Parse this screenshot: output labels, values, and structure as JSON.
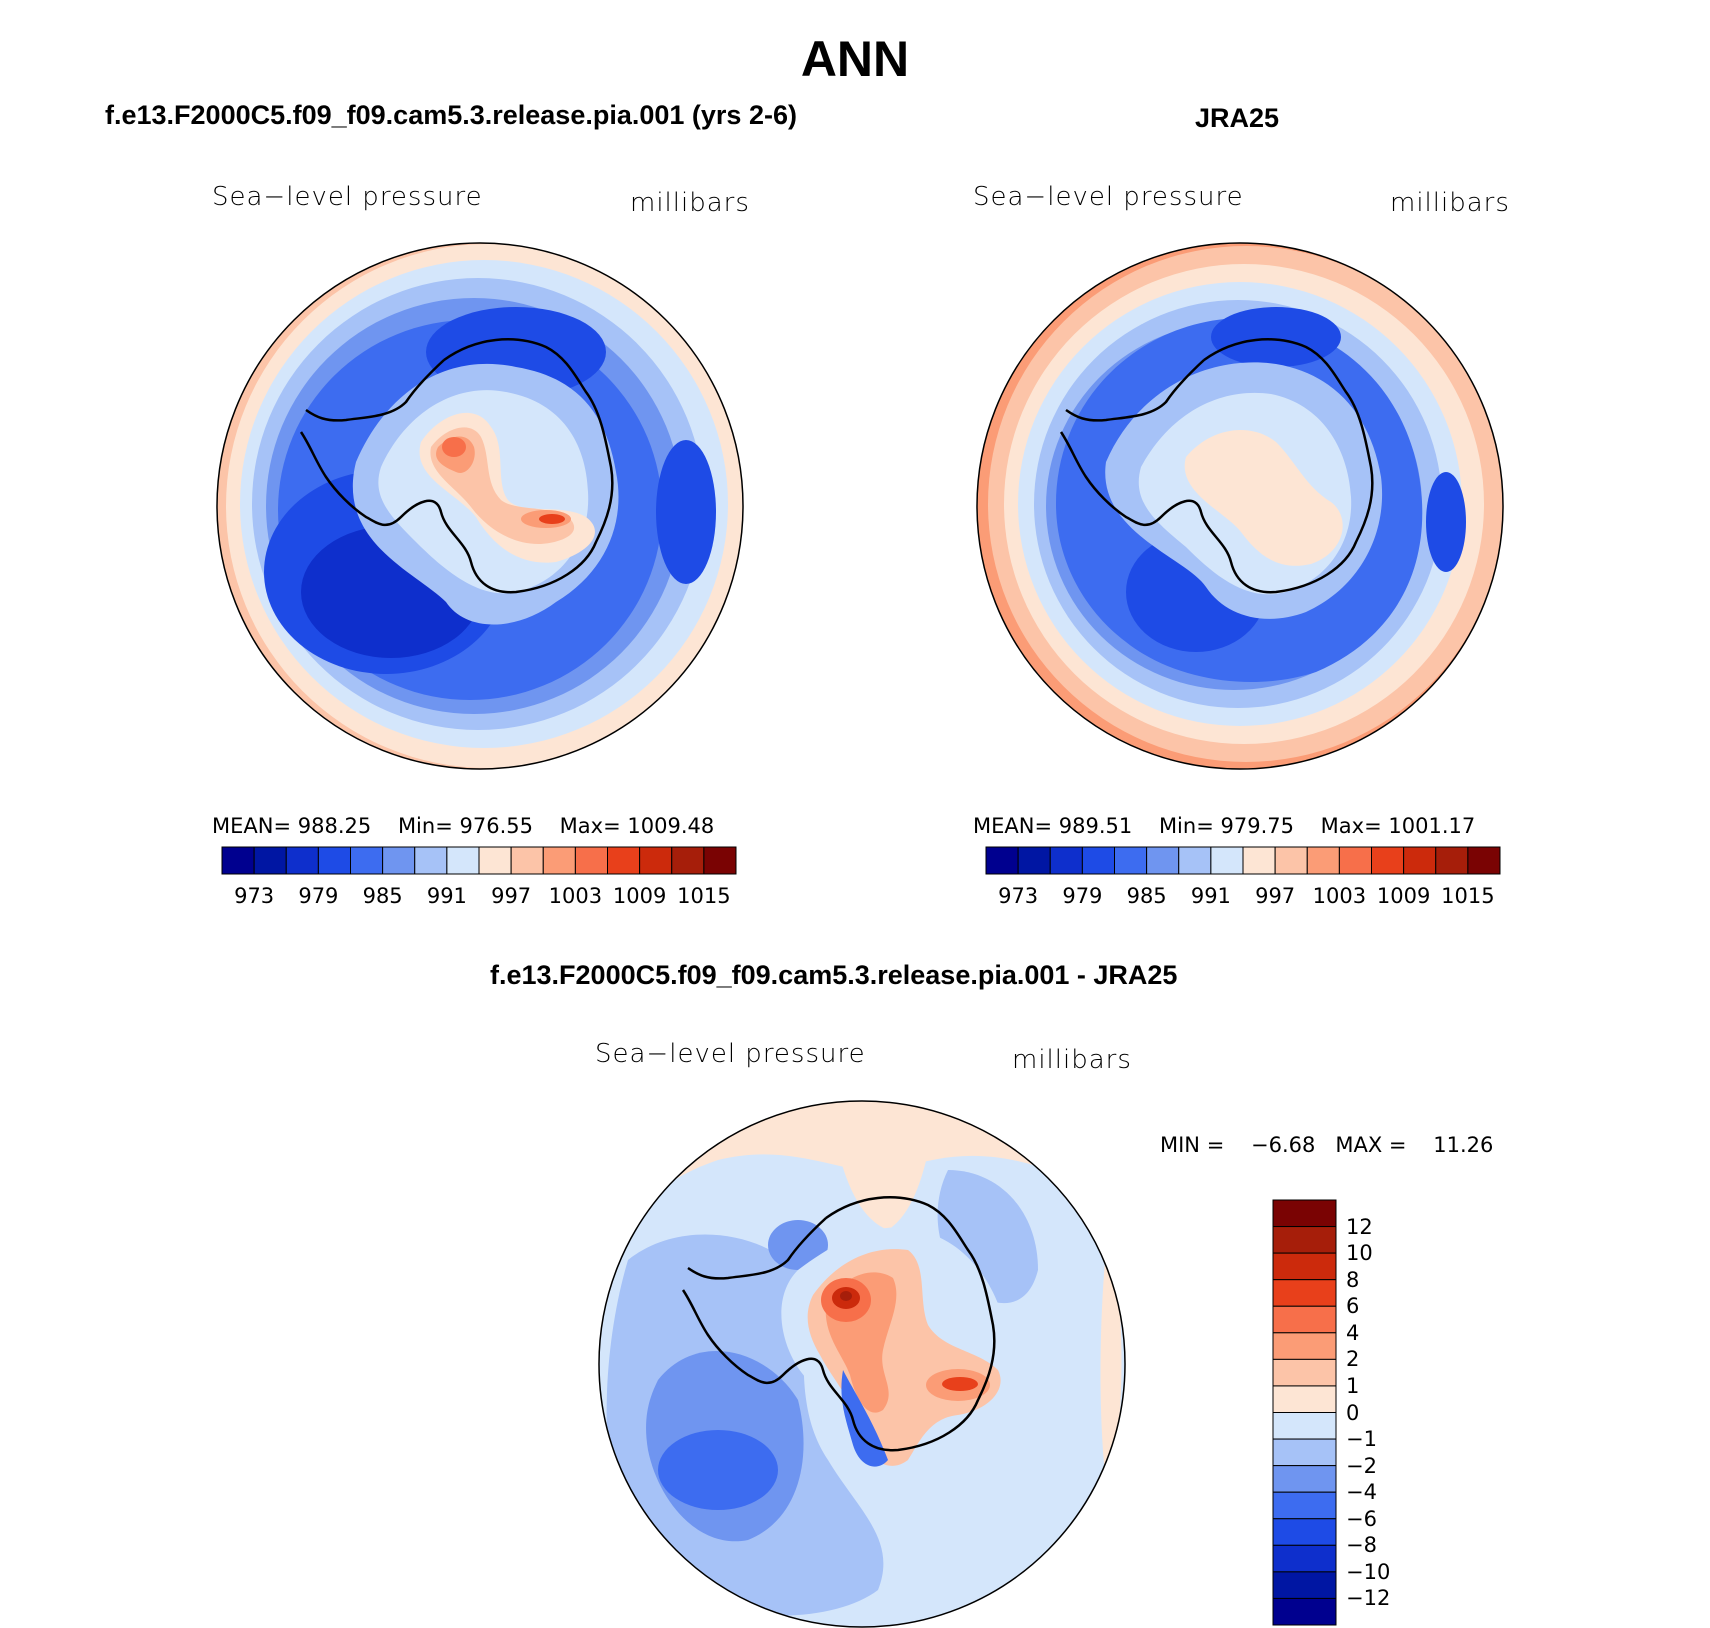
{
  "figure": {
    "title": "ANN"
  },
  "panels": [
    {
      "subtitle": "f.e13.F2000C5.f09_f09.cam5.3.release.pia.001 (yrs 2-6)",
      "variable": "Sea−level pressure",
      "units": "millibars",
      "stats": {
        "mean_label": "MEAN=",
        "mean": "988.25",
        "min_label": "Min=",
        "min": "976.55",
        "max_label": "Max=",
        "max": "1009.48"
      }
    },
    {
      "subtitle": "JRA25",
      "variable": "Sea−level pressure",
      "units": "millibars",
      "stats": {
        "mean_label": "MEAN=",
        "mean": "989.51",
        "min_label": "Min=",
        "min": "979.75",
        "max_label": "Max=",
        "max": "1001.17"
      }
    },
    {
      "subtitle": "f.e13.F2000C5.f09_f09.cam5.3.release.pia.001 - JRA25",
      "variable": "Sea−level pressure",
      "units": "millibars",
      "stats": {
        "min_label": "MIN =",
        "min": "−6.68",
        "max_label": "MAX =",
        "max": "11.26"
      }
    }
  ],
  "colorbars": {
    "abs": {
      "colors": [
        "#00008f",
        "#0016a3",
        "#0e2fcc",
        "#1e4be6",
        "#3d6cf0",
        "#6f95f0",
        "#a6c2f7",
        "#d4e6fb",
        "#fde5d4",
        "#fcc4a8",
        "#fb9c76",
        "#f76f4a",
        "#e8401b",
        "#cc2a0c",
        "#a61e0a",
        "#7a0303"
      ],
      "labels": [
        "973",
        "979",
        "985",
        "991",
        "997",
        "1003",
        "1009",
        "1015"
      ]
    },
    "diff": {
      "colors": [
        "#00008f",
        "#0016a3",
        "#0e2fcc",
        "#1e4be6",
        "#3d6cf0",
        "#6f95f0",
        "#a6c2f7",
        "#d4e6fb",
        "#fde5d4",
        "#fcc4a8",
        "#fb9c76",
        "#f76f4a",
        "#e8401b",
        "#cc2a0c",
        "#a61e0a",
        "#7a0303"
      ],
      "labels": [
        "12",
        "10",
        "8",
        "6",
        "4",
        "2",
        "1",
        "0",
        "−1",
        "−2",
        "−4",
        "−6",
        "−8",
        "−10",
        "−12"
      ]
    }
  },
  "chart_data": [
    {
      "type": "heatmap",
      "title": "f.e13.F2000C5.f09_f09.cam5.3.release.pia.001 (yrs 2-6)",
      "field": "Sea-level pressure",
      "units": "millibars",
      "projection": "south polar stereographic",
      "contour_levels": [
        973,
        976,
        979,
        982,
        985,
        988,
        991,
        994,
        997,
        1000,
        1003,
        1006,
        1009,
        1012,
        1015
      ],
      "mean": 988.25,
      "min": 976.55,
      "max": 1009.48
    },
    {
      "type": "heatmap",
      "title": "JRA25",
      "field": "Sea-level pressure",
      "units": "millibars",
      "projection": "south polar stereographic",
      "contour_levels": [
        973,
        976,
        979,
        982,
        985,
        988,
        991,
        994,
        997,
        1000,
        1003,
        1006,
        1009,
        1012,
        1015
      ],
      "mean": 989.51,
      "min": 979.75,
      "max": 1001.17
    },
    {
      "type": "heatmap",
      "title": "f.e13.F2000C5.f09_f09.cam5.3.release.pia.001 - JRA25",
      "field": "Sea-level pressure",
      "units": "millibars",
      "projection": "south polar stereographic",
      "contour_levels": [
        -12,
        -10,
        -8,
        -6,
        -4,
        -2,
        -1,
        0,
        1,
        2,
        4,
        6,
        8,
        10,
        12
      ],
      "min": -6.68,
      "max": 11.26
    }
  ]
}
